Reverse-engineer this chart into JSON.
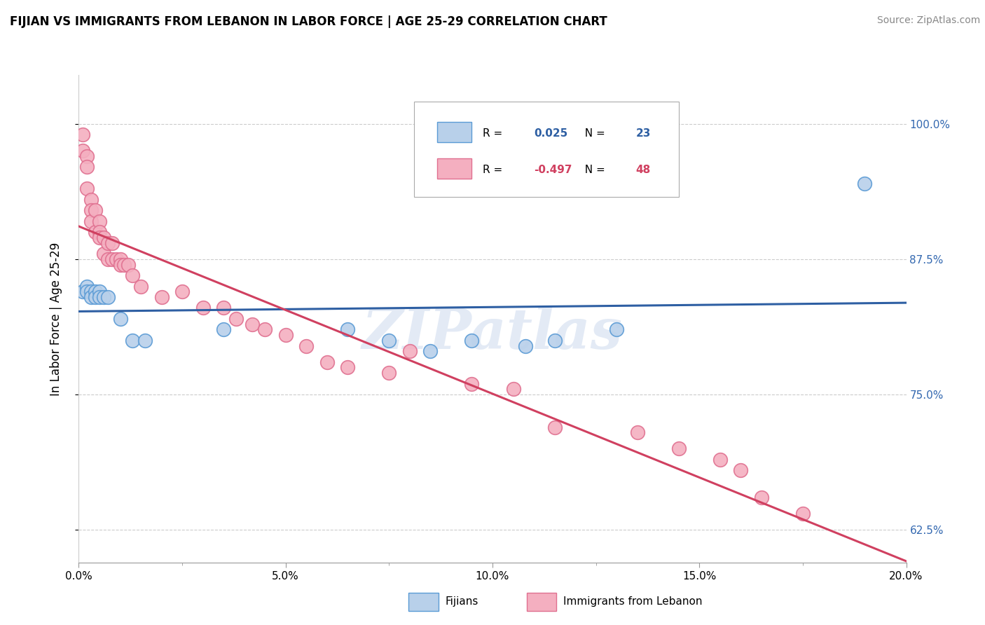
{
  "title": "FIJIAN VS IMMIGRANTS FROM LEBANON IN LABOR FORCE | AGE 25-29 CORRELATION CHART",
  "source": "Source: ZipAtlas.com",
  "ylabel": "In Labor Force | Age 25-29",
  "xlim": [
    0.0,
    0.2
  ],
  "ylim": [
    0.595,
    1.045
  ],
  "xtick_labels": [
    "0.0%",
    "",
    "5.0%",
    "",
    "10.0%",
    "",
    "15.0%",
    "",
    "20.0%"
  ],
  "xtick_vals": [
    0.0,
    0.025,
    0.05,
    0.075,
    0.1,
    0.125,
    0.15,
    0.175,
    0.2
  ],
  "ytick_labels": [
    "62.5%",
    "75.0%",
    "87.5%",
    "100.0%"
  ],
  "ytick_vals": [
    0.625,
    0.75,
    0.875,
    1.0
  ],
  "legend_R_fijian": "0.025",
  "legend_N_fijian": "23",
  "legend_R_lebanon": "-0.497",
  "legend_N_lebanon": "48",
  "fijian_color": "#b8d0ea",
  "lebanon_color": "#f4afc0",
  "fijian_edge": "#5b9bd5",
  "lebanon_edge": "#e07090",
  "trendline_fijian_color": "#2e5fa3",
  "trendline_lebanon_color": "#d04060",
  "watermark": "ZIPatlas",
  "fijian_x": [
    0.001,
    0.002,
    0.002,
    0.003,
    0.003,
    0.004,
    0.004,
    0.005,
    0.005,
    0.006,
    0.007,
    0.01,
    0.013,
    0.016,
    0.035,
    0.065,
    0.075,
    0.085,
    0.095,
    0.108,
    0.115,
    0.13,
    0.19
  ],
  "fijian_y": [
    0.845,
    0.85,
    0.845,
    0.845,
    0.84,
    0.845,
    0.84,
    0.845,
    0.84,
    0.84,
    0.84,
    0.82,
    0.8,
    0.8,
    0.81,
    0.81,
    0.8,
    0.79,
    0.8,
    0.795,
    0.8,
    0.81,
    0.945
  ],
  "lebanon_x": [
    0.001,
    0.001,
    0.002,
    0.002,
    0.002,
    0.003,
    0.003,
    0.003,
    0.004,
    0.004,
    0.005,
    0.005,
    0.005,
    0.006,
    0.006,
    0.007,
    0.007,
    0.008,
    0.008,
    0.009,
    0.01,
    0.01,
    0.011,
    0.012,
    0.013,
    0.015,
    0.02,
    0.025,
    0.03,
    0.035,
    0.038,
    0.042,
    0.045,
    0.05,
    0.055,
    0.06,
    0.065,
    0.075,
    0.08,
    0.095,
    0.105,
    0.115,
    0.135,
    0.145,
    0.155,
    0.16,
    0.165,
    0.175
  ],
  "lebanon_y": [
    0.99,
    0.975,
    0.97,
    0.96,
    0.94,
    0.93,
    0.92,
    0.91,
    0.92,
    0.9,
    0.91,
    0.9,
    0.895,
    0.895,
    0.88,
    0.89,
    0.875,
    0.89,
    0.875,
    0.875,
    0.875,
    0.87,
    0.87,
    0.87,
    0.86,
    0.85,
    0.84,
    0.845,
    0.83,
    0.83,
    0.82,
    0.815,
    0.81,
    0.805,
    0.795,
    0.78,
    0.775,
    0.77,
    0.79,
    0.76,
    0.755,
    0.72,
    0.715,
    0.7,
    0.69,
    0.68,
    0.655,
    0.64
  ]
}
